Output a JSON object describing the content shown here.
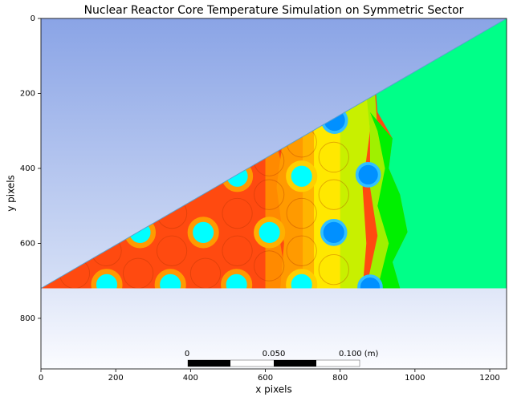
{
  "chart_data": {
    "type": "image",
    "title": "Nuclear Reactor Core Temperature Simulation on Symmetric Sector",
    "xlabel": "x pixels",
    "ylabel": "y pixels",
    "xlim": [
      0,
      1245
    ],
    "ylim": [
      935,
      0
    ],
    "xticks": [
      0,
      200,
      400,
      600,
      800,
      1000,
      1200
    ],
    "yticks": [
      0,
      200,
      400,
      600,
      800
    ],
    "annotations": [
      "0",
      "0.050",
      "0.100  (m)"
    ]
  }
}
